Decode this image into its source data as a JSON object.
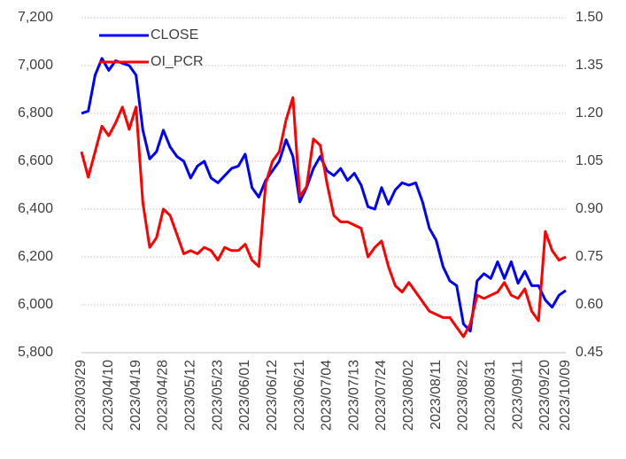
{
  "chart_data": {
    "type": "line",
    "categories": [
      "2023/03/29",
      null,
      null,
      null,
      "2023/04/10",
      null,
      null,
      null,
      "2023/04/19",
      null,
      null,
      null,
      "2023/04/28",
      null,
      null,
      null,
      "2023/05/12",
      null,
      null,
      null,
      "2023/05/23",
      null,
      null,
      null,
      "2023/06/01",
      null,
      null,
      null,
      "2023/06/12",
      null,
      null,
      null,
      "2023/06/21",
      null,
      null,
      null,
      "2023/07/04",
      null,
      null,
      null,
      "2023/07/13",
      null,
      null,
      null,
      "2023/07/24",
      null,
      null,
      null,
      "2023/08/02",
      null,
      null,
      null,
      "2023/08/11",
      null,
      null,
      null,
      "2023/08/22",
      null,
      null,
      null,
      "2023/08/31",
      null,
      null,
      null,
      "2023/09/11",
      null,
      null,
      null,
      "2023/09/20",
      null,
      null,
      "2023/10/09"
    ],
    "series": [
      {
        "name": "CLOSE",
        "color": "#0000ff",
        "axis": "y",
        "values": [
          6800,
          6810,
          6960,
          7030,
          6980,
          7020,
          7010,
          7000,
          6960,
          6730,
          6610,
          6640,
          6730,
          6660,
          6620,
          6600,
          6530,
          6580,
          6600,
          6530,
          6510,
          6540,
          6570,
          6580,
          6630,
          6490,
          6450,
          6520,
          6560,
          6600,
          6690,
          6620,
          6430,
          6490,
          6570,
          6620,
          6560,
          6540,
          6570,
          6520,
          6550,
          6500,
          6410,
          6400,
          6490,
          6420,
          6480,
          6510,
          6500,
          6510,
          6430,
          6320,
          6270,
          6160,
          6100,
          6080,
          5920,
          5890,
          6100,
          6130,
          6110,
          6180,
          6110,
          6180,
          6090,
          6140,
          6080,
          6080,
          6020,
          5990,
          6040,
          6060
        ]
      },
      {
        "name": "OI_PCR",
        "color": "#ff0000",
        "axis": "y2",
        "values": [
          1.08,
          1.0,
          1.08,
          1.16,
          1.13,
          1.17,
          1.22,
          1.15,
          1.22,
          0.92,
          0.78,
          0.81,
          0.9,
          0.88,
          0.82,
          0.76,
          0.77,
          0.76,
          0.78,
          0.77,
          0.74,
          0.78,
          0.77,
          0.77,
          0.79,
          0.74,
          0.72,
          0.98,
          1.05,
          1.08,
          1.18,
          1.25,
          0.94,
          0.97,
          1.12,
          1.1,
          0.98,
          0.88,
          0.86,
          0.86,
          0.85,
          0.84,
          0.75,
          0.78,
          0.8,
          0.72,
          0.66,
          0.64,
          0.67,
          0.64,
          0.61,
          0.58,
          0.57,
          0.56,
          0.56,
          0.53,
          0.5,
          0.54,
          0.63,
          0.62,
          0.63,
          0.64,
          0.67,
          0.63,
          0.62,
          0.65,
          0.58,
          0.55,
          0.83,
          0.77,
          0.74,
          0.75
        ]
      }
    ],
    "ylim": [
      5800,
      7200
    ],
    "yticks": [
      {
        "value": 5800,
        "label": "5,800"
      },
      {
        "value": 6000,
        "label": "6,000"
      },
      {
        "value": 6200,
        "label": "6,200"
      },
      {
        "value": 6400,
        "label": "6,400"
      },
      {
        "value": 6600,
        "label": "6,600"
      },
      {
        "value": 6800,
        "label": "6,800"
      },
      {
        "value": 7000,
        "label": "7,000"
      },
      {
        "value": 7200,
        "label": "7,200"
      }
    ],
    "y2lim": [
      0.45,
      1.5
    ],
    "y2ticks": [
      0.45,
      {
        "value": 0.6,
        "label": "0.60"
      },
      0.75,
      {
        "value": 0.9,
        "label": "0.90"
      },
      1.05,
      {
        "value": 1.2,
        "label": "1.20"
      },
      1.35,
      {
        "value": 1.5,
        "label": "1.50"
      }
    ],
    "grid": true,
    "legend": "upper left"
  }
}
